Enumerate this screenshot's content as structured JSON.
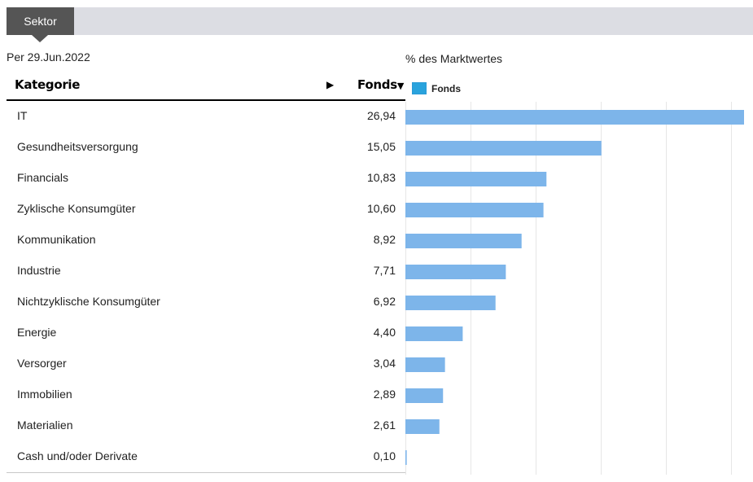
{
  "tabs": [
    {
      "label": "Sektor",
      "active": true
    }
  ],
  "as_of": "Per 29.Jun.2022",
  "table": {
    "header": {
      "category": "Kategorie",
      "category_sort_icon": "play-right-icon",
      "fund": "Fonds",
      "fund_sort": "▼"
    },
    "rows": [
      {
        "category": "IT",
        "value": "26,94"
      },
      {
        "category": "Gesundheitsversorgung",
        "value": "15,05"
      },
      {
        "category": "Financials",
        "value": "10,83"
      },
      {
        "category": "Zyklische Konsumgüter",
        "value": "10,60"
      },
      {
        "category": "Kommunikation",
        "value": "8,92"
      },
      {
        "category": "Industrie",
        "value": "7,71"
      },
      {
        "category": "Nichtzyklische Konsumgüter",
        "value": "6,92"
      },
      {
        "category": "Energie",
        "value": "4,40"
      },
      {
        "category": "Versorger",
        "value": "3,04"
      },
      {
        "category": "Immobilien",
        "value": "2,89"
      },
      {
        "category": "Materialien",
        "value": "2,61"
      },
      {
        "category": "Cash und/oder Derivate",
        "value": "0,10"
      }
    ]
  },
  "chart_data": {
    "type": "bar",
    "orientation": "horizontal",
    "title": "% des Marktwertes",
    "categories": [
      "IT",
      "Gesundheitsversorgung",
      "Financials",
      "Zyklische Konsumgüter",
      "Kommunikation",
      "Industrie",
      "Nichtzyklische Konsumgüter",
      "Energie",
      "Versorger",
      "Immobilien",
      "Materialien",
      "Cash und/oder Derivate"
    ],
    "series": [
      {
        "name": "Fonds",
        "values": [
          26.94,
          15.05,
          10.83,
          10.6,
          8.92,
          7.71,
          6.92,
          4.4,
          3.04,
          2.89,
          2.61,
          0.1
        ]
      }
    ],
    "xlim": [
      0,
      26.94
    ],
    "gridlines_x": [
      5,
      10,
      15,
      20,
      25
    ],
    "grid": true,
    "legend_position": "top-left",
    "bar_color": "#7db5ea",
    "legend_swatch_color": "#29a3dd"
  }
}
